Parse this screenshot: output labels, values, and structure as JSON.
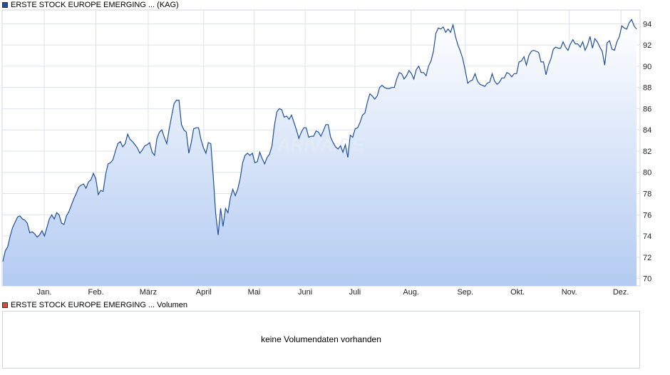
{
  "price_legend": {
    "label": "ERSTE STOCK EUROPE EMERGING ... (KAG)",
    "color": "#1f4f9e"
  },
  "volume_legend": {
    "label": "ERSTE STOCK EUROPE EMERGING ... Volumen",
    "color": "#d24b3c"
  },
  "volume_message": "keine Volumendaten vorhanden",
  "watermark": "ARIVA.DE",
  "chart_data": {
    "type": "area",
    "series": [
      {
        "name": "ERSTE STOCK EUROPE EMERGING ... (KAG)",
        "values": [
          71.6,
          72.6,
          73.0,
          74.0,
          74.8,
          75.3,
          75.8,
          75.9,
          75.6,
          75.5,
          75.2,
          74.3,
          74.4,
          74.2,
          73.9,
          74.1,
          74.5,
          74.0,
          74.8,
          75.6,
          76.0,
          75.6,
          76.2,
          76.0,
          75.2,
          75.1,
          75.9,
          76.3,
          76.9,
          77.5,
          78.0,
          78.6,
          78.8,
          78.9,
          78.5,
          79.1,
          79.3,
          79.9,
          79.4,
          77.9,
          78.3,
          78.2,
          79.8,
          80.8,
          80.9,
          81.2,
          82.0,
          82.7,
          82.9,
          82.4,
          82.7,
          83.6,
          83.1,
          82.9,
          82.6,
          82.3,
          81.8,
          82.1,
          82.5,
          82.6,
          82.8,
          81.9,
          81.6,
          83.2,
          83.8,
          84.0,
          83.3,
          82.7,
          84.1,
          85.3,
          86.5,
          86.8,
          86.8,
          84.5,
          84.0,
          83.8,
          81.8,
          82.8,
          84.1,
          84.2,
          84.2,
          83.1,
          82.3,
          81.8,
          82.8,
          82.7,
          79.6,
          76.1,
          74.1,
          76.6,
          74.9,
          76.6,
          76.2,
          77.6,
          78.4,
          77.8,
          78.4,
          79.4,
          80.9,
          81.6,
          81.8,
          81.6,
          81.8,
          80.9,
          81.0,
          81.9,
          81.3,
          80.8,
          81.4,
          81.7,
          82.5,
          84.4,
          85.7,
          86.0,
          85.9,
          85.2,
          85.3,
          85.0,
          85.4,
          84.7,
          84.0,
          83.2,
          83.8,
          84.2,
          84.2,
          83.3,
          83.4,
          83.4,
          83.9,
          83.8,
          83.4,
          83.9,
          84.5,
          84.5,
          83.3,
          82.8,
          82.4,
          82.2,
          82.5,
          81.9,
          82.6,
          81.4,
          83.5,
          83.3,
          84.1,
          84.2,
          84.7,
          85.4,
          85.6,
          86.6,
          87.4,
          87.2,
          86.9,
          87.2,
          88.0,
          88.2,
          88.0,
          87.9,
          87.9,
          88.0,
          88.0,
          88.8,
          89.4,
          89.3,
          88.8,
          89.1,
          89.6,
          89.3,
          88.8,
          89.7,
          90.0,
          89.4,
          89.4,
          89.1,
          90.0,
          90.5,
          91.4,
          93.1,
          93.6,
          93.5,
          93.7,
          93.2,
          93.5,
          93.2,
          93.9,
          92.8,
          92.0,
          91.4,
          90.7,
          89.6,
          88.4,
          88.6,
          88.7,
          89.3,
          88.6,
          88.3,
          88.2,
          88.1,
          88.4,
          88.5,
          89.3,
          88.6,
          88.3,
          88.5,
          88.9,
          88.9,
          89.4,
          89.3,
          89.0,
          89.3,
          89.3,
          90.4,
          90.5,
          90.9,
          90.1,
          91.0,
          91.4,
          91.5,
          91.4,
          91.3,
          90.4,
          90.4,
          89.2,
          90.1,
          90.7,
          91.6,
          91.8,
          91.7,
          91.7,
          92.3,
          91.8,
          91.5,
          92.1,
          92.5,
          92.1,
          92.1,
          91.8,
          92.3,
          91.5,
          92.0,
          92.8,
          91.7,
          92.6,
          92.3,
          91.8,
          91.4,
          90.1,
          92.2,
          92.4,
          91.6,
          91.5,
          92.3,
          92.8,
          93.8,
          93.6,
          93.5,
          94.1,
          94.4,
          93.8,
          93.5
        ]
      }
    ],
    "months": [
      "Jan.",
      "Feb.",
      "März",
      "April",
      "Mai",
      "Juni",
      "Juli",
      "Aug.",
      "Sep.",
      "Okt.",
      "Nov.",
      "Dez."
    ],
    "month_positions": [
      0.066,
      0.147,
      0.229,
      0.316,
      0.395,
      0.475,
      0.553,
      0.641,
      0.726,
      0.808,
      0.889,
      0.97
    ],
    "y_ticks": [
      70,
      72,
      74,
      76,
      78,
      80,
      82,
      84,
      86,
      88,
      90,
      92,
      94
    ],
    "ylim": [
      69.3,
      95.3
    ],
    "grid": true,
    "legend": "top-left"
  }
}
